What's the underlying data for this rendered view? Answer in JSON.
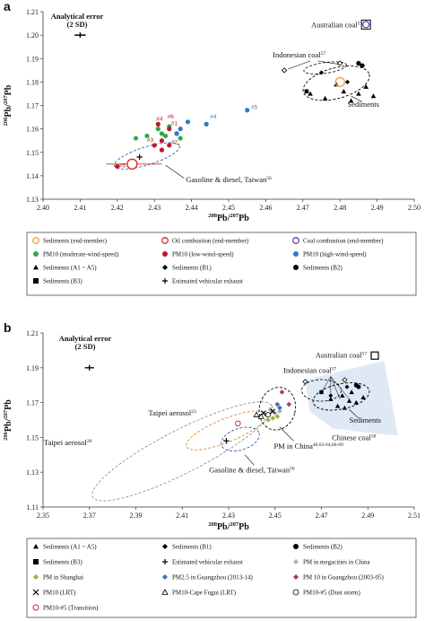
{
  "chart_data": [
    {
      "panel": "a",
      "type": "scatter",
      "xlabel": "208Pb/207Pb",
      "ylabel": "206Pb/207Pb",
      "xlim": [
        2.4,
        2.5
      ],
      "ylim": [
        1.13,
        1.21
      ],
      "xticks": [
        "2.40",
        "2.41",
        "2.42",
        "2.43",
        "2.44",
        "2.45",
        "2.46",
        "2.47",
        "2.48",
        "2.49",
        "2.50"
      ],
      "yticks": [
        "1.13",
        "1.14",
        "1.15",
        "1.16",
        "1.17",
        "1.18",
        "1.19",
        "1.20",
        "1.21"
      ],
      "annotations": {
        "error_title": "Analytical error",
        "error_sub": "(2 SD)",
        "australian": "Australian coal",
        "australian_ref": "57",
        "indonesian": "Indonesian coal",
        "indonesian_ref": "57",
        "sediments": "Sediments",
        "gasoline": "Gasoline & diesel, Taiwan",
        "gasoline_ref": "56"
      },
      "point_labels": [
        "#1",
        "#2",
        "#3",
        "#4",
        "#5",
        "#6",
        "#4",
        "#5"
      ],
      "legend": [
        "Sediments (end-member)",
        "Oil combustion (end-member)",
        "Coal combustion (end-member)",
        "PM10 (moderate-wind-speed)",
        "PM10 (low-wind-speed)",
        "PM10 (high-wind-speed)",
        "Sediments (A1 ~ A5)",
        "Sediments (B1)",
        "Sediments (B2)",
        "Sediments (B3)",
        "Estimated vehicular exhaust"
      ],
      "series": {
        "sediments_A": [
          [
            2.481,
            1.176
          ],
          [
            2.479,
            1.179
          ],
          [
            2.485,
            1.175
          ],
          [
            2.483,
            1.172
          ],
          [
            2.476,
            1.173
          ],
          [
            2.472,
            1.175
          ],
          [
            2.487,
            1.178
          ],
          [
            2.489,
            1.174
          ]
        ],
        "sediments_B1": [
          [
            2.475,
            1.184
          ],
          [
            2.482,
            1.18
          ]
        ],
        "sediments_B2": [
          [
            2.485,
            1.188
          ],
          [
            2.486,
            1.187
          ]
        ],
        "sediments_B3": [
          [
            2.471,
            1.176
          ]
        ],
        "indonesian": [
          [
            2.465,
            1.185
          ],
          [
            2.48,
            1.188
          ]
        ],
        "australian": [
          2.487,
          1.204
        ],
        "sed_endmember": [
          2.48,
          1.18
        ],
        "oil_endmember": [
          2.424,
          1.145
        ],
        "vehicular": [
          2.426,
          1.148
        ],
        "pm_moderate": [
          [
            2.428,
            1.157
          ],
          [
            2.431,
            1.16
          ],
          [
            2.432,
            1.158
          ],
          [
            2.434,
            1.161
          ],
          [
            2.437,
            1.156
          ],
          [
            2.425,
            1.156
          ],
          [
            2.433,
            1.157
          ]
        ],
        "pm_low": [
          [
            2.43,
            1.153
          ],
          [
            2.432,
            1.155
          ],
          [
            2.434,
            1.153
          ],
          [
            2.436,
            1.158
          ],
          [
            2.434,
            1.16
          ],
          [
            2.432,
            1.151
          ],
          [
            2.42,
            1.144
          ],
          [
            2.431,
            1.162
          ]
        ],
        "pm_high": [
          [
            2.439,
            1.163
          ],
          [
            2.444,
            1.162
          ],
          [
            2.455,
            1.168
          ],
          [
            2.437,
            1.16
          ],
          [
            2.436,
            1.158
          ]
        ]
      }
    },
    {
      "panel": "b",
      "type": "scatter",
      "xlabel": "208Pb/207Pb",
      "ylabel": "206Pb/207Pb",
      "xlim": [
        2.35,
        2.51
      ],
      "ylim": [
        1.11,
        1.21
      ],
      "xticks": [
        "2.35",
        "2.37",
        "2.39",
        "2.41",
        "2.43",
        "2.45",
        "2.47",
        "2.49",
        "2.51"
      ],
      "yticks": [
        "1.11",
        "1.13",
        "1.15",
        "1.17",
        "1.19",
        "1.21"
      ],
      "annotations": {
        "error_title": "Analytical error",
        "error_sub": "(2 SD)",
        "australian": "Australian coal",
        "australian_ref": "57",
        "indonesian": "Indonesian coal",
        "indonesian_ref": "57",
        "sediments": "Sediments",
        "chinese": "Chinese coal",
        "chinese_ref": "58",
        "taipei23": "Taipei aerosol",
        "taipei23_ref": "23",
        "taipei20": "Taipei aerosol",
        "taipei20_ref": "20",
        "pmchina": "PM in China",
        "pmchina_ref": "46,62-64,66-69",
        "gasoline": "Gasoline & diesel, Taiwan",
        "gasoline_ref": "56"
      },
      "legend": [
        "Sediments (A1 ~ A5)",
        "Sediments (B1)",
        "Sediments (B2)",
        "Sediments (B3)",
        "Estimated vehicular exhaust",
        "PM in megacities in China",
        "PM in Shanghai",
        "PM2.5 in Guangzhou (2013-14)",
        "PM 10 in Guangzhou (2003-05)",
        "PM10 (LRT)",
        "PM10-Cape Fugui (LRT)",
        "PM10-#5 (Dust storm)",
        "PM10-#5 (Transition)"
      ],
      "series": {
        "sediments_A": [
          [
            2.479,
            1.174
          ],
          [
            2.482,
            1.171
          ],
          [
            2.477,
            1.168
          ],
          [
            2.485,
            1.17
          ],
          [
            2.474,
            1.172
          ],
          [
            2.488,
            1.173
          ],
          [
            2.48,
            1.167
          ],
          [
            2.483,
            1.176
          ]
        ],
        "sediments_B1": [
          [
            2.474,
            1.174
          ],
          [
            2.481,
            1.179
          ]
        ],
        "sediments_B2": [
          [
            2.485,
            1.18
          ],
          [
            2.486,
            1.179
          ]
        ],
        "sediments_B3": [
          [
            2.47,
            1.176
          ]
        ],
        "indonesian": [
          [
            2.463,
            1.182
          ],
          [
            2.48,
            1.183
          ]
        ],
        "australian": [
          2.493,
          1.197
        ],
        "vehicular": [
          2.429,
          1.148
        ],
        "pm_megacities": [
          [
            2.45,
            1.164
          ],
          [
            2.448,
            1.166
          ],
          [
            2.452,
            1.165
          ],
          [
            2.446,
            1.163
          ]
        ],
        "pm_shanghai": [
          [
            2.449,
            1.161
          ],
          [
            2.451,
            1.162
          ],
          [
            2.447,
            1.16
          ]
        ],
        "pm25_guangzhou": [
          [
            2.451,
            1.169
          ],
          [
            2.452,
            1.167
          ]
        ],
        "pm10_guangzhou": [
          [
            2.456,
            1.169
          ],
          [
            2.453,
            1.176
          ]
        ],
        "pm10_lrt": [
          [
            2.445,
            1.164
          ],
          [
            2.449,
            1.165
          ]
        ],
        "pm10_cape": [
          [
            2.442,
            1.163
          ],
          [
            2.444,
            1.162
          ]
        ],
        "pm10_dust": [
          [
            2.447,
            1.163
          ]
        ],
        "pm10_transition": [
          [
            2.434,
            1.158
          ]
        ]
      }
    }
  ]
}
